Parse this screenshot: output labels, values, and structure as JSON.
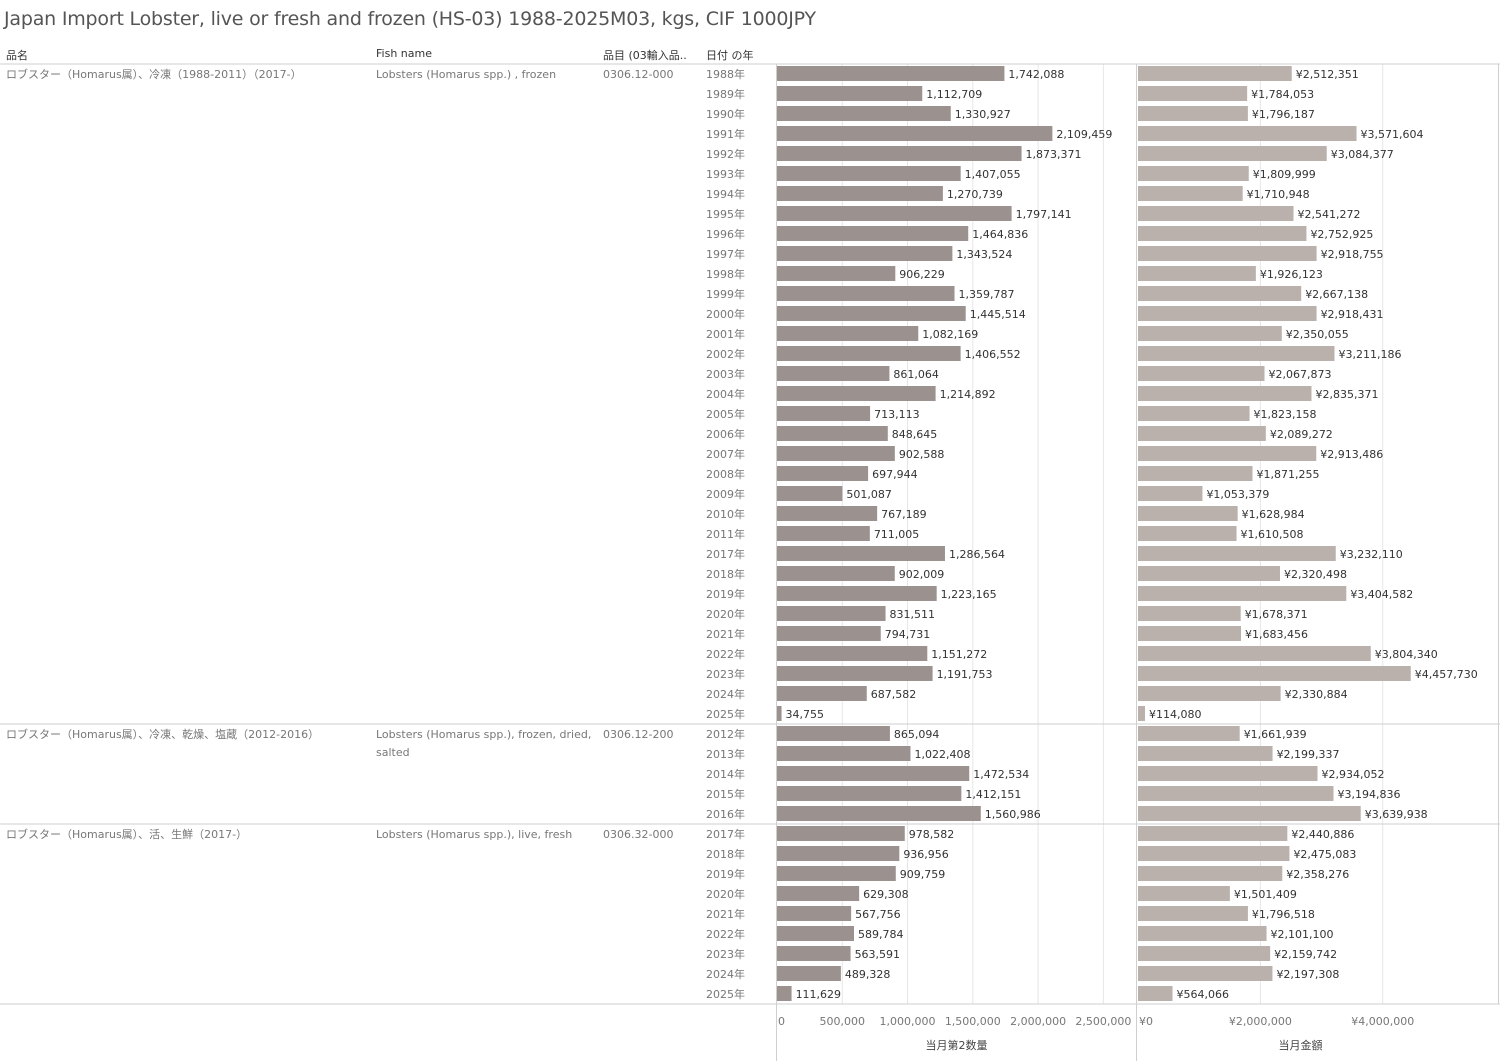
{
  "title": "Japan Import Lobster, live or fresh and frozen (HS-03) 1988-2025M03, kgs, CIF 1000JPY",
  "headers": {
    "name_jp": "品名",
    "fish_name": "Fish name",
    "item_code": "品目 (03輸入品..",
    "year": "日付 の年"
  },
  "colors": {
    "qty_bar": "#9b918e",
    "value_bar": "#bbb1ac",
    "grid": "#e6e6e6",
    "separator": "#cfcfcf"
  },
  "chart_data": {
    "type": "bar",
    "orientation": "horizontal",
    "grid": true,
    "groups": [
      {
        "name_jp": "ロブスター（Homarus属）、冷凍（1988-2011）（2017-）",
        "fish_name": "Lobsters (Homarus spp.) , frozen",
        "item_code": "0306.12-000",
        "years": [
          "1988年",
          "1989年",
          "1990年",
          "1991年",
          "1992年",
          "1993年",
          "1994年",
          "1995年",
          "1996年",
          "1997年",
          "1998年",
          "1999年",
          "2000年",
          "2001年",
          "2002年",
          "2003年",
          "2004年",
          "2005年",
          "2006年",
          "2007年",
          "2008年",
          "2009年",
          "2010年",
          "2011年",
          "2017年",
          "2018年",
          "2019年",
          "2020年",
          "2021年",
          "2022年",
          "2023年",
          "2024年",
          "2025年"
        ],
        "quantity": [
          1742088,
          1112709,
          1330927,
          2109459,
          1873371,
          1407055,
          1270739,
          1797141,
          1464836,
          1343524,
          906229,
          1359787,
          1445514,
          1082169,
          1406552,
          861064,
          1214892,
          713113,
          848645,
          902588,
          697944,
          501087,
          767189,
          711005,
          1286564,
          902009,
          1223165,
          831511,
          794731,
          1151272,
          1191753,
          687582,
          34755
        ],
        "value": [
          2512351,
          1784053,
          1796187,
          3571604,
          3084377,
          1809999,
          1710948,
          2541272,
          2752925,
          2918755,
          1926123,
          2667138,
          2918431,
          2350055,
          3211186,
          2067873,
          2835371,
          1823158,
          2089272,
          2913486,
          1871255,
          1053379,
          1628984,
          1610508,
          3232110,
          2320498,
          3404582,
          1678371,
          1683456,
          3804340,
          4457730,
          2330884,
          114080
        ]
      },
      {
        "name_jp": "ロブスター（Homarus属）、冷凍、乾燥、塩蔵（2012-2016）",
        "fish_name": "Lobsters (Homarus spp.), frozen, dried, salted",
        "item_code": "0306.12-200",
        "years": [
          "2012年",
          "2013年",
          "2014年",
          "2015年",
          "2016年"
        ],
        "quantity": [
          865094,
          1022408,
          1472534,
          1412151,
          1560986
        ],
        "value": [
          1661939,
          2199337,
          2934052,
          3194836,
          3639938
        ]
      },
      {
        "name_jp": "ロブスター（Homarus属）、活、生鮮（2017-）",
        "fish_name": "Lobsters (Homarus spp.), live, fresh",
        "item_code": "0306.32-000",
        "years": [
          "2017年",
          "2018年",
          "2019年",
          "2020年",
          "2021年",
          "2022年",
          "2023年",
          "2024年",
          "2025年"
        ],
        "quantity": [
          978582,
          936956,
          909759,
          629308,
          567756,
          589784,
          563591,
          489328,
          111629
        ],
        "value": [
          2440886,
          2475083,
          2358276,
          1501409,
          1796518,
          2101100,
          2159742,
          2197308,
          564066
        ]
      }
    ],
    "quantity_axis": {
      "label": "当月第2数量",
      "range": [
        0,
        2750000
      ],
      "ticks": [
        0,
        500000,
        1000000,
        1500000,
        2000000,
        2500000
      ],
      "tick_labels": [
        "0",
        "500,000",
        "1,000,000",
        "1,500,000",
        "2,000,000",
        "2,500,000"
      ]
    },
    "value_axis": {
      "label": "当月金額",
      "range": [
        0,
        5900000
      ],
      "ticks": [
        0,
        2000000,
        4000000
      ],
      "tick_labels": [
        "¥0",
        "¥2,000,000",
        "¥4,000,000"
      ]
    }
  }
}
